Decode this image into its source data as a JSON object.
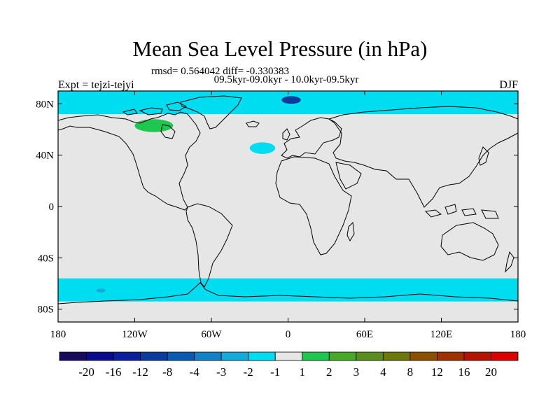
{
  "title": "Mean Sea Level Pressure (in hPa)",
  "stats_text": "rmsd= 0.564042 diff= -0.330383",
  "period_text": "09.5kyr-09.0kyr - 10.0kyr-09.5kyr",
  "left_label": "Expt = tejzi-tejyi",
  "right_label": "DJF",
  "chart_data": {
    "type": "heatmap",
    "projection": "cylindrical-equidistant",
    "title": "Mean Sea Level Pressure (in hPa)",
    "units": "hPa",
    "xlim": [
      -180,
      180
    ],
    "ylim": [
      -90,
      90
    ],
    "x_ticks": [
      {
        "value": -180,
        "label": "180"
      },
      {
        "value": -120,
        "label": "120W"
      },
      {
        "value": -60,
        "label": "60W"
      },
      {
        "value": 0,
        "label": "0"
      },
      {
        "value": 60,
        "label": "60E"
      },
      {
        "value": 120,
        "label": "120E"
      },
      {
        "value": 180,
        "label": "180"
      }
    ],
    "y_ticks": [
      {
        "value": 80,
        "label": "80N"
      },
      {
        "value": 40,
        "label": "40N"
      },
      {
        "value": 0,
        "label": "0"
      },
      {
        "value": -40,
        "label": "40S"
      },
      {
        "value": -80,
        "label": "80S"
      }
    ],
    "colorbar": {
      "labels": [
        "-20",
        "-16",
        "-12",
        "-8",
        "-4",
        "-3",
        "-2",
        "-1",
        "1",
        "2",
        "3",
        "4",
        "8",
        "12",
        "16",
        "20"
      ],
      "colors": [
        "#1a0a5e",
        "#0a0a8c",
        "#0a1e9e",
        "#0a3c9e",
        "#0a5ab4",
        "#1482c8",
        "#14aadc",
        "#00dcf0",
        "#e6e6e6",
        "#1ec850",
        "#46aa28",
        "#5a8c1e",
        "#6e780a",
        "#8c5000",
        "#a03200",
        "#b41400",
        "#dc0000"
      ]
    },
    "regions": [
      {
        "level": "-2 to -1",
        "color": "#00dcf0",
        "lon": [
          -180,
          180
        ],
        "lat": [
          -74,
          -56
        ],
        "description": "Southern Ocean band"
      },
      {
        "level": "-3 to -2",
        "color": "#14aadc",
        "lon": [
          -150,
          -143
        ],
        "lat": [
          -67,
          -64
        ],
        "description": "small core in Southern Ocean band"
      },
      {
        "level": "-2 to -1",
        "color": "#00dcf0",
        "lon": [
          -180,
          180
        ],
        "lat": [
          72,
          90
        ],
        "description": "Arctic band"
      },
      {
        "level": "-8 to -3",
        "color": "#0a3c9e",
        "lon": [
          -5,
          10
        ],
        "lat": [
          80,
          86
        ],
        "description": "low core north of Svalbard"
      },
      {
        "level": "-2 to -1",
        "color": "#00dcf0",
        "lon": [
          -30,
          -10
        ],
        "lat": [
          41,
          50
        ],
        "description": "North Atlantic patch"
      },
      {
        "level": "1 to 3",
        "color": "#1ec850",
        "lon": [
          -120,
          -90
        ],
        "lat": [
          58,
          68
        ],
        "description": "Canadian Arctic positive anomaly"
      }
    ]
  }
}
